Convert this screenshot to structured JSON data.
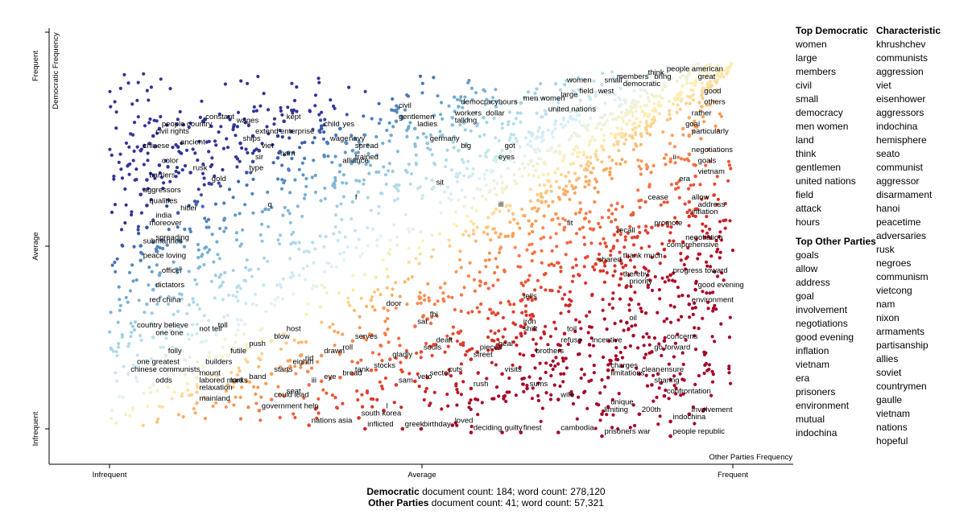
{
  "chart_data": {
    "type": "scatter",
    "x_axis": {
      "title": "Other Parties Frequency",
      "ticks": [
        "Infrequent",
        "Average",
        "Frequent"
      ]
    },
    "y_axis": {
      "title": "Democratic Frequency",
      "ticks": [
        "Infrequent",
        "Average",
        "Frequent"
      ]
    },
    "labeled_terms": [
      {
        "term": "people",
        "x": 0.89,
        "y": 0.97
      },
      {
        "term": "american",
        "x": 0.93,
        "y": 0.97
      },
      {
        "term": "think",
        "x": 0.86,
        "y": 0.96
      },
      {
        "term": "members",
        "x": 0.81,
        "y": 0.95
      },
      {
        "term": "bring",
        "x": 0.87,
        "y": 0.95
      },
      {
        "term": "great",
        "x": 0.94,
        "y": 0.95
      },
      {
        "term": "women",
        "x": 0.73,
        "y": 0.94
      },
      {
        "term": "small",
        "x": 0.79,
        "y": 0.94
      },
      {
        "term": "democratic",
        "x": 0.82,
        "y": 0.93
      },
      {
        "term": "field",
        "x": 0.75,
        "y": 0.91
      },
      {
        "term": "west",
        "x": 0.78,
        "y": 0.91
      },
      {
        "term": "large",
        "x": 0.72,
        "y": 0.9
      },
      {
        "term": "good",
        "x": 0.95,
        "y": 0.91
      },
      {
        "term": "men women",
        "x": 0.66,
        "y": 0.89
      },
      {
        "term": "hours",
        "x": 0.62,
        "y": 0.88
      },
      {
        "term": "democracy",
        "x": 0.56,
        "y": 0.88
      },
      {
        "term": "civil",
        "x": 0.46,
        "y": 0.87
      },
      {
        "term": "others",
        "x": 0.95,
        "y": 0.88
      },
      {
        "term": "united nations",
        "x": 0.7,
        "y": 0.86
      },
      {
        "term": "workers",
        "x": 0.55,
        "y": 0.85
      },
      {
        "term": "dollar",
        "x": 0.6,
        "y": 0.85
      },
      {
        "term": "rather",
        "x": 0.93,
        "y": 0.85
      },
      {
        "term": "gentlemen",
        "x": 0.46,
        "y": 0.84
      },
      {
        "term": "talking",
        "x": 0.55,
        "y": 0.83
      },
      {
        "term": "constant",
        "x": 0.15,
        "y": 0.84
      },
      {
        "term": "wages",
        "x": 0.2,
        "y": 0.83
      },
      {
        "term": "kept",
        "x": 0.28,
        "y": 0.84
      },
      {
        "term": "ladies",
        "x": 0.49,
        "y": 0.82
      },
      {
        "term": "goal",
        "x": 0.92,
        "y": 0.82
      },
      {
        "term": "people country",
        "x": 0.08,
        "y": 0.82
      },
      {
        "term": "child",
        "x": 0.34,
        "y": 0.82
      },
      {
        "term": "yes",
        "x": 0.37,
        "y": 0.82
      },
      {
        "term": "extend",
        "x": 0.23,
        "y": 0.8
      },
      {
        "term": "enterprise",
        "x": 0.27,
        "y": 0.8
      },
      {
        "term": "civil rights",
        "x": 0.07,
        "y": 0.8
      },
      {
        "term": "particularly",
        "x": 0.93,
        "y": 0.8
      },
      {
        "term": "wage",
        "x": 0.35,
        "y": 0.78
      },
      {
        "term": "navy",
        "x": 0.38,
        "y": 0.78
      },
      {
        "term": "germany",
        "x": 0.51,
        "y": 0.78
      },
      {
        "term": "ships",
        "x": 0.21,
        "y": 0.78
      },
      {
        "term": "ancient",
        "x": 0.11,
        "y": 0.77
      },
      {
        "term": "chinese",
        "x": 0.05,
        "y": 0.76
      },
      {
        "term": "viet",
        "x": 0.24,
        "y": 0.76
      },
      {
        "term": "spread",
        "x": 0.39,
        "y": 0.76
      },
      {
        "term": "got",
        "x": 0.63,
        "y": 0.76
      },
      {
        "term": "big",
        "x": 0.56,
        "y": 0.76
      },
      {
        "term": "negotiations",
        "x": 0.93,
        "y": 0.75
      },
      {
        "term": "nam",
        "x": 0.27,
        "y": 0.74
      },
      {
        "term": "trained",
        "x": 0.39,
        "y": 0.73
      },
      {
        "term": "eyes",
        "x": 0.62,
        "y": 0.73
      },
      {
        "term": "sir",
        "x": 0.23,
        "y": 0.73
      },
      {
        "term": "color",
        "x": 0.08,
        "y": 0.72
      },
      {
        "term": "alliance",
        "x": 0.37,
        "y": 0.72
      },
      {
        "term": "goals",
        "x": 0.94,
        "y": 0.72
      },
      {
        "term": "ii",
        "x": 0.9,
        "y": 0.73
      },
      {
        "term": "rusk",
        "x": 0.13,
        "y": 0.7
      },
      {
        "term": "type",
        "x": 0.22,
        "y": 0.7
      },
      {
        "term": "vietnam",
        "x": 0.94,
        "y": 0.69
      },
      {
        "term": "barriers",
        "x": 0.06,
        "y": 0.68
      },
      {
        "term": "gold",
        "x": 0.16,
        "y": 0.67
      },
      {
        "term": "sit",
        "x": 0.52,
        "y": 0.66
      },
      {
        "term": "era",
        "x": 0.91,
        "y": 0.67
      },
      {
        "term": "aggressors",
        "x": 0.05,
        "y": 0.64
      },
      {
        "term": "cease",
        "x": 0.86,
        "y": 0.62
      },
      {
        "term": "allow",
        "x": 0.93,
        "y": 0.62
      },
      {
        "term": "f",
        "x": 0.39,
        "y": 0.62
      },
      {
        "term": "qualities",
        "x": 0.06,
        "y": 0.61
      },
      {
        "term": "address",
        "x": 0.94,
        "y": 0.6
      },
      {
        "term": "q",
        "x": 0.25,
        "y": 0.6
      },
      {
        "term": "ill",
        "x": 0.62,
        "y": 0.6
      },
      {
        "term": "hitler",
        "x": 0.11,
        "y": 0.59
      },
      {
        "term": "inflation",
        "x": 0.93,
        "y": 0.58
      },
      {
        "term": "india",
        "x": 0.07,
        "y": 0.57
      },
      {
        "term": "moreover",
        "x": 0.06,
        "y": 0.55
      },
      {
        "term": "promote",
        "x": 0.87,
        "y": 0.55
      },
      {
        "term": "fit",
        "x": 0.73,
        "y": 0.55
      },
      {
        "term": "recall",
        "x": 0.81,
        "y": 0.53
      },
      {
        "term": "spreading",
        "x": 0.07,
        "y": 0.51
      },
      {
        "term": "negotiation",
        "x": 0.92,
        "y": 0.51
      },
      {
        "term": "submarines",
        "x": 0.05,
        "y": 0.5
      },
      {
        "term": "comprehensive",
        "x": 0.89,
        "y": 0.49
      },
      {
        "term": "peace loving",
        "x": 0.05,
        "y": 0.46
      },
      {
        "term": "thank much",
        "x": 0.82,
        "y": 0.46
      },
      {
        "term": "shared",
        "x": 0.78,
        "y": 0.45
      },
      {
        "term": "progress toward",
        "x": 0.9,
        "y": 0.42
      },
      {
        "term": "officer",
        "x": 0.08,
        "y": 0.42
      },
      {
        "term": "thereby",
        "x": 0.82,
        "y": 0.41
      },
      {
        "term": "dictators",
        "x": 0.07,
        "y": 0.38
      },
      {
        "term": "priority",
        "x": 0.83,
        "y": 0.39
      },
      {
        "term": "good evening",
        "x": 0.94,
        "y": 0.38
      },
      {
        "term": "red china",
        "x": 0.06,
        "y": 0.34
      },
      {
        "term": "tells",
        "x": 0.66,
        "y": 0.35
      },
      {
        "term": "door",
        "x": 0.44,
        "y": 0.33
      },
      {
        "term": "environment",
        "x": 0.93,
        "y": 0.34
      },
      {
        "term": "fbi",
        "x": 0.51,
        "y": 0.3
      },
      {
        "term": "sat",
        "x": 0.49,
        "y": 0.28
      },
      {
        "term": "oil",
        "x": 0.83,
        "y": 0.29
      },
      {
        "term": "iron",
        "x": 0.66,
        "y": 0.28
      },
      {
        "term": "toll",
        "x": 0.17,
        "y": 0.27
      },
      {
        "term": "country believe",
        "x": 0.04,
        "y": 0.27
      },
      {
        "term": "not tell",
        "x": 0.14,
        "y": 0.26
      },
      {
        "term": "host",
        "x": 0.28,
        "y": 0.26
      },
      {
        "term": "shift",
        "x": 0.66,
        "y": 0.26
      },
      {
        "term": "toil",
        "x": 0.73,
        "y": 0.26
      },
      {
        "term": "one one",
        "x": 0.07,
        "y": 0.25
      },
      {
        "term": "blow",
        "x": 0.26,
        "y": 0.24
      },
      {
        "term": "serves",
        "x": 0.39,
        "y": 0.24
      },
      {
        "term": "dealt",
        "x": 0.52,
        "y": 0.23
      },
      {
        "term": "refuse",
        "x": 0.72,
        "y": 0.23
      },
      {
        "term": "incentive",
        "x": 0.77,
        "y": 0.23
      },
      {
        "term": "concerns",
        "x": 0.89,
        "y": 0.24
      },
      {
        "term": "push",
        "x": 0.22,
        "y": 0.22
      },
      {
        "term": "heal",
        "x": 0.62,
        "y": 0.22
      },
      {
        "term": "pieces",
        "x": 0.59,
        "y": 0.21
      },
      {
        "term": "roll",
        "x": 0.37,
        "y": 0.21
      },
      {
        "term": "souls",
        "x": 0.5,
        "y": 0.21
      },
      {
        "term": "brothers",
        "x": 0.68,
        "y": 0.2
      },
      {
        "term": "go forward",
        "x": 0.87,
        "y": 0.21
      },
      {
        "term": "folly",
        "x": 0.09,
        "y": 0.2
      },
      {
        "term": "futile",
        "x": 0.19,
        "y": 0.2
      },
      {
        "term": "drawn",
        "x": 0.34,
        "y": 0.2
      },
      {
        "term": "street",
        "x": 0.58,
        "y": 0.19
      },
      {
        "term": "gladly",
        "x": 0.45,
        "y": 0.19
      },
      {
        "term": "rid",
        "x": 0.31,
        "y": 0.18
      },
      {
        "term": "eighth",
        "x": 0.29,
        "y": 0.17
      },
      {
        "term": "one greatest",
        "x": 0.04,
        "y": 0.17
      },
      {
        "term": "builders",
        "x": 0.15,
        "y": 0.17
      },
      {
        "term": "stocks",
        "x": 0.42,
        "y": 0.16
      },
      {
        "term": "cuts",
        "x": 0.54,
        "y": 0.15
      },
      {
        "term": "tank",
        "x": 0.39,
        "y": 0.15
      },
      {
        "term": "charges",
        "x": 0.8,
        "y": 0.16
      },
      {
        "term": "clean",
        "x": 0.85,
        "y": 0.15
      },
      {
        "term": "ensure",
        "x": 0.88,
        "y": 0.15
      },
      {
        "term": "starts",
        "x": 0.26,
        "y": 0.15
      },
      {
        "term": "visits",
        "x": 0.63,
        "y": 0.15
      },
      {
        "term": "chinese communists",
        "x": 0.03,
        "y": 0.15
      },
      {
        "term": "mount",
        "x": 0.14,
        "y": 0.14
      },
      {
        "term": "bread",
        "x": 0.37,
        "y": 0.14
      },
      {
        "term": "veto",
        "x": 0.49,
        "y": 0.13
      },
      {
        "term": "sector",
        "x": 0.51,
        "y": 0.14
      },
      {
        "term": "limitations",
        "x": 0.8,
        "y": 0.14
      },
      {
        "term": "band",
        "x": 0.22,
        "y": 0.13
      },
      {
        "term": "eye",
        "x": 0.34,
        "y": 0.13
      },
      {
        "term": "odds",
        "x": 0.07,
        "y": 0.12
      },
      {
        "term": "sharing",
        "x": 0.87,
        "y": 0.12
      },
      {
        "term": "iii",
        "x": 0.32,
        "y": 0.12
      },
      {
        "term": "lord",
        "x": 0.19,
        "y": 0.12
      },
      {
        "term": "sam",
        "x": 0.46,
        "y": 0.12
      },
      {
        "term": "labored marks",
        "x": 0.14,
        "y": 0.12
      },
      {
        "term": "rush",
        "x": 0.58,
        "y": 0.11
      },
      {
        "term": "sums",
        "x": 0.67,
        "y": 0.11
      },
      {
        "term": "confrontation",
        "x": 0.89,
        "y": 0.09
      },
      {
        "term": "relaxation",
        "x": 0.14,
        "y": 0.1
      },
      {
        "term": "seat",
        "x": 0.28,
        "y": 0.09
      },
      {
        "term": "wife",
        "x": 0.72,
        "y": 0.08
      },
      {
        "term": "mainland",
        "x": 0.14,
        "y": 0.07
      },
      {
        "term": "could lead",
        "x": 0.26,
        "y": 0.08
      },
      {
        "term": "unique",
        "x": 0.8,
        "y": 0.06
      },
      {
        "term": "government help",
        "x": 0.24,
        "y": 0.05
      },
      {
        "term": "l",
        "x": 0.44,
        "y": 0.05
      },
      {
        "term": "limiting",
        "x": 0.79,
        "y": 0.04
      },
      {
        "term": "200th",
        "x": 0.85,
        "y": 0.04
      },
      {
        "term": "involvement",
        "x": 0.93,
        "y": 0.04
      },
      {
        "term": "south korea",
        "x": 0.4,
        "y": 0.03
      },
      {
        "term": "nations asia",
        "x": 0.32,
        "y": 0.01
      },
      {
        "term": "indochina",
        "x": 0.9,
        "y": 0.02
      },
      {
        "term": "loved",
        "x": 0.55,
        "y": 0.01
      },
      {
        "term": "inflicted",
        "x": 0.41,
        "y": 0.0
      },
      {
        "term": "greek",
        "x": 0.47,
        "y": 0.0
      },
      {
        "term": "birthday",
        "x": 0.5,
        "y": 0.0
      },
      {
        "term": "deciding",
        "x": 0.58,
        "y": -0.01
      },
      {
        "term": "guilty",
        "x": 0.63,
        "y": -0.01
      },
      {
        "term": "finest",
        "x": 0.66,
        "y": -0.01
      },
      {
        "term": "cambodia",
        "x": 0.72,
        "y": -0.01
      },
      {
        "term": "prisoners war",
        "x": 0.79,
        "y": -0.02
      },
      {
        "term": "people republic",
        "x": 0.9,
        "y": -0.02
      }
    ],
    "grid": false,
    "legend": "none"
  },
  "sidebar": {
    "top_democratic_title": "Top Democratic",
    "top_democratic": [
      "women",
      "large",
      "members",
      "civil",
      "small",
      "democracy",
      "men women",
      "land",
      "think",
      "gentlemen",
      "united nations",
      "field",
      "attack",
      "hours"
    ],
    "top_other_title": "Top Other Parties",
    "top_other": [
      "goals",
      "allow",
      "address",
      "goal",
      "involvement",
      "negotiations",
      "good evening",
      "inflation",
      "vietnam",
      "era",
      "prisoners",
      "environment",
      "mutual",
      "indochina"
    ],
    "characteristic_title": "Characteristic",
    "characteristic": [
      "khrushchev",
      "communists",
      "aggression",
      "viet",
      "eisenhower",
      "aggressors",
      "indochina",
      "hemisphere",
      "seato",
      "communist",
      "aggressor",
      "disarmament",
      "hanoi",
      "peacetime",
      "adversaries",
      "rusk",
      "negroes",
      "communism",
      "vietcong",
      "nam",
      "nixon",
      "armaments",
      "partisanship",
      "allies",
      "soviet",
      "countrymen",
      "gaulle",
      "vietnam",
      "nations",
      "hopeful"
    ]
  },
  "footer": {
    "line1_name": "Democratic",
    "line1_text": " document count: 184; word count: 278,120",
    "line2_name": "Other Parties",
    "line2_text": " document count: 41; word count: 57,321"
  }
}
